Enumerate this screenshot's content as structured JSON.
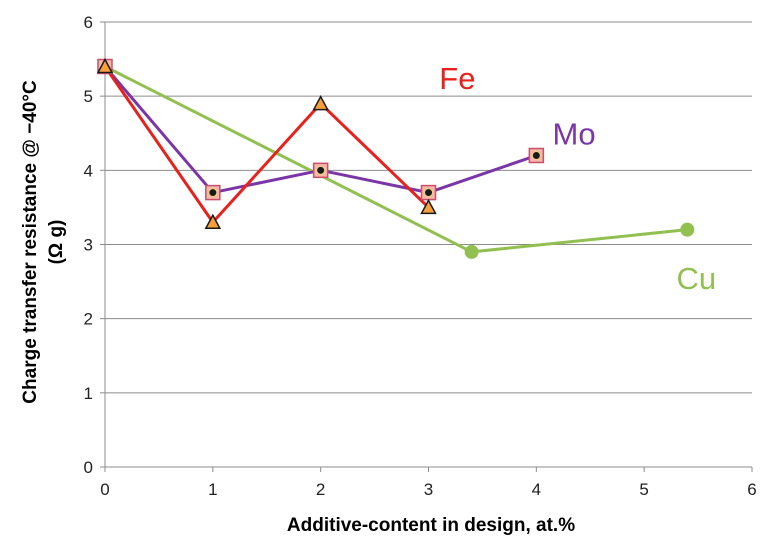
{
  "chart_data": {
    "type": "line",
    "title": "",
    "xlabel": "Additive-content in design, at.%",
    "ylabel_line1": "Charge transfer resistance @ −40°C",
    "ylabel_line2": "(Ω g)",
    "xlim": [
      0,
      6
    ],
    "ylim": [
      0,
      6
    ],
    "x_ticks": [
      "0",
      "1",
      "2",
      "3",
      "4",
      "5",
      "6"
    ],
    "y_ticks": [
      "0",
      "1",
      "2",
      "3",
      "4",
      "5",
      "6"
    ],
    "grid": "horizontal",
    "legend": "none",
    "series": [
      {
        "name": "Fe",
        "color": "#e8211c",
        "marker": "triangle",
        "label_at": [
          3.1,
          5.1
        ],
        "points": [
          [
            0,
            5.4
          ],
          [
            1,
            3.3
          ],
          [
            2,
            4.9
          ],
          [
            3,
            3.5
          ]
        ]
      },
      {
        "name": "Mo",
        "color": "#7a36a8",
        "marker": "square-dot",
        "label_at": [
          4.15,
          4.35
        ],
        "points": [
          [
            0,
            5.4
          ],
          [
            1,
            3.7
          ],
          [
            2,
            4.0
          ],
          [
            3,
            3.7
          ],
          [
            4,
            4.2
          ]
        ]
      },
      {
        "name": "Cu",
        "color": "#92c050",
        "marker": "circle",
        "label_at": [
          5.3,
          2.4
        ],
        "points": [
          [
            0,
            5.4
          ],
          [
            3.4,
            2.9
          ],
          [
            5.4,
            3.2
          ]
        ]
      }
    ]
  }
}
